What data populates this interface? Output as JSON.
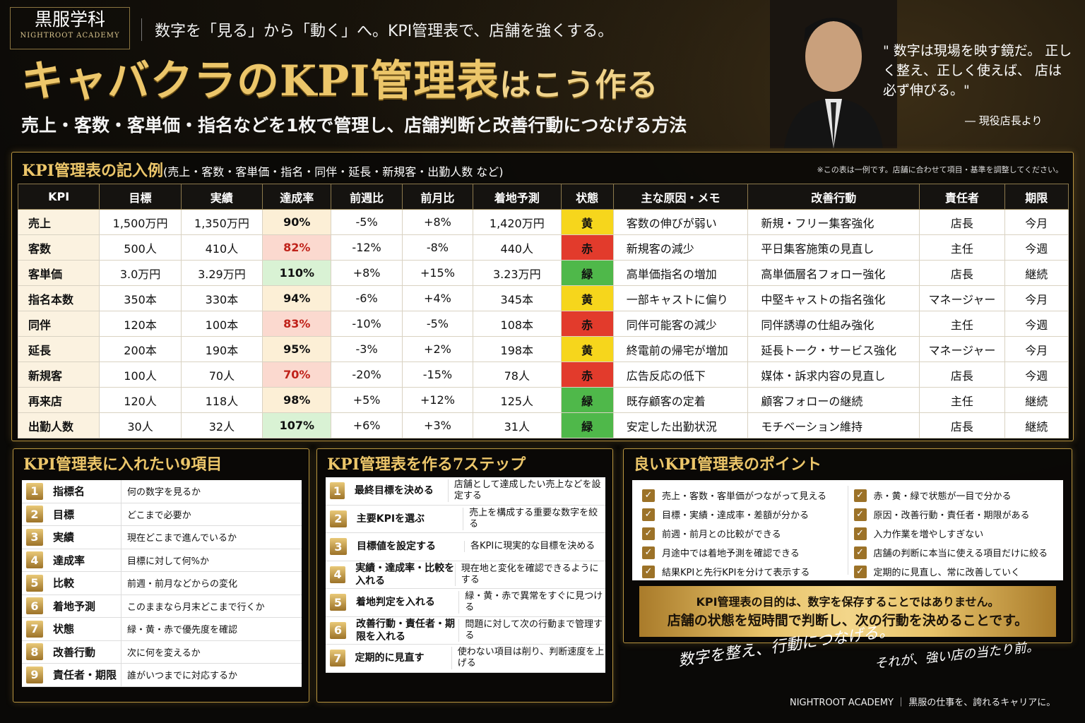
{
  "brand": {
    "name": "黒服学科",
    "name_en": "NIGHTROOT ACADEMY"
  },
  "tagline": "数字を「見る」から「動く」へ。KPI管理表で、店舗を強くする。",
  "title": {
    "main": "キャバクラのKPI管理表",
    "suffix": "はこう作る"
  },
  "subtitle": "売上・客数・客単価・指名などを1枚で管理し、店舗判断と改善行動につなげる方法",
  "quote": {
    "text": "\" 数字は現場を映す鏡だ。 正しく整え、正しく使えば、 店は必ず伸びる。\"",
    "source": "― 現役店長より"
  },
  "kpi_table": {
    "heading": "KPI管理表の記入例",
    "heading_sub": "(売上・客数・客単価・指名・同伴・延長・新規客・出勤人数 など)",
    "note": "※この表は一例です。店舗に合わせて項目・基準を調整してください。",
    "columns": [
      "KPI",
      "目標",
      "実績",
      "達成率",
      "前週比",
      "前月比",
      "着地予測",
      "状態",
      "主な原因・メモ",
      "改善行動",
      "責任者",
      "期限"
    ],
    "rows": [
      {
        "kpi": "売上",
        "target": "1,500万円",
        "actual": "1,350万円",
        "rate": "90%",
        "wow": "-5%",
        "mom": "+8%",
        "forecast": "1,420万円",
        "status": "黄",
        "memo": "客数の伸びが弱い",
        "action": "新規・フリー集客強化",
        "owner": "店長",
        "due": "今月"
      },
      {
        "kpi": "客数",
        "target": "500人",
        "actual": "410人",
        "rate": "82%",
        "wow": "-12%",
        "mom": "-8%",
        "forecast": "440人",
        "status": "赤",
        "memo": "新規客の減少",
        "action": "平日集客施策の見直し",
        "owner": "主任",
        "due": "今週"
      },
      {
        "kpi": "客単価",
        "target": "3.0万円",
        "actual": "3.29万円",
        "rate": "110%",
        "wow": "+8%",
        "mom": "+15%",
        "forecast": "3.23万円",
        "status": "緑",
        "memo": "高単価指名の増加",
        "action": "高単価層名フォロー強化",
        "owner": "店長",
        "due": "継続"
      },
      {
        "kpi": "指名本数",
        "target": "350本",
        "actual": "330本",
        "rate": "94%",
        "wow": "-6%",
        "mom": "+4%",
        "forecast": "345本",
        "status": "黄",
        "memo": "一部キャストに偏り",
        "action": "中堅キャストの指名強化",
        "owner": "マネージャー",
        "due": "今月"
      },
      {
        "kpi": "同伴",
        "target": "120本",
        "actual": "100本",
        "rate": "83%",
        "wow": "-10%",
        "mom": "-5%",
        "forecast": "108本",
        "status": "赤",
        "memo": "同伴可能客の減少",
        "action": "同伴誘導の仕組み強化",
        "owner": "主任",
        "due": "今週"
      },
      {
        "kpi": "延長",
        "target": "200本",
        "actual": "190本",
        "rate": "95%",
        "wow": "-3%",
        "mom": "+2%",
        "forecast": "198本",
        "status": "黄",
        "memo": "終電前の帰宅が増加",
        "action": "延長トーク・サービス強化",
        "owner": "マネージャー",
        "due": "今月"
      },
      {
        "kpi": "新規客",
        "target": "100人",
        "actual": "70人",
        "rate": "70%",
        "wow": "-20%",
        "mom": "-15%",
        "forecast": "78人",
        "status": "赤",
        "memo": "広告反応の低下",
        "action": "媒体・訴求内容の見直し",
        "owner": "店長",
        "due": "今週"
      },
      {
        "kpi": "再来店",
        "target": "120人",
        "actual": "118人",
        "rate": "98%",
        "wow": "+5%",
        "mom": "+12%",
        "forecast": "125人",
        "status": "緑",
        "memo": "既存顧客の定着",
        "action": "顧客フォローの継続",
        "owner": "主任",
        "due": "継続"
      },
      {
        "kpi": "出勤人数",
        "target": "30人",
        "actual": "32人",
        "rate": "107%",
        "wow": "+6%",
        "mom": "+3%",
        "forecast": "31人",
        "status": "緑",
        "memo": "安定した出勤状況",
        "action": "モチベーション維持",
        "owner": "店長",
        "due": "継続"
      }
    ],
    "status_colors": {
      "黄": "#f6d61c",
      "赤": "#e23b2c",
      "緑": "#4fb84a"
    }
  },
  "items9": {
    "heading": "KPI管理表に入れたい9項目",
    "items": [
      {
        "n": "1",
        "k": "指標名",
        "v": "何の数字を見るか"
      },
      {
        "n": "2",
        "k": "目標",
        "v": "どこまで必要か"
      },
      {
        "n": "3",
        "k": "実績",
        "v": "現在どこまで進んでいるか"
      },
      {
        "n": "4",
        "k": "達成率",
        "v": "目標に対して何%か"
      },
      {
        "n": "5",
        "k": "比較",
        "v": "前週・前月などからの変化"
      },
      {
        "n": "6",
        "k": "着地予測",
        "v": "このままなら月末どこまで行くか"
      },
      {
        "n": "7",
        "k": "状態",
        "v": "緑・黄・赤で優先度を確認"
      },
      {
        "n": "8",
        "k": "改善行動",
        "v": "次に何を変えるか"
      },
      {
        "n": "9",
        "k": "責任者・期限",
        "v": "誰がいつまでに対応するか"
      }
    ]
  },
  "steps7": {
    "heading": "KPI管理表を作る7ステップ",
    "items": [
      {
        "n": "1",
        "k": "最終目標を決める",
        "v": "店舗として達成したい売上などを設定する"
      },
      {
        "n": "2",
        "k": "主要KPIを選ぶ",
        "v": "売上を構成する重要な数字を絞る"
      },
      {
        "n": "3",
        "k": "目標値を設定する",
        "v": "各KPIに現実的な目標を決める"
      },
      {
        "n": "4",
        "k": "実績・達成率・比較を入れる",
        "v": "現在地と変化を確認できるようにする"
      },
      {
        "n": "5",
        "k": "着地判定を入れる",
        "v": "緑・黄・赤で異常をすぐに見つける"
      },
      {
        "n": "6",
        "k": "改善行動・責任者・期限を入れる",
        "v": "問題に対して次の行動まで管理する"
      },
      {
        "n": "7",
        "k": "定期的に見直す",
        "v": "使わない項目は削り、判断速度を上げる"
      }
    ]
  },
  "points": {
    "heading": "良いKPI管理表のポイント",
    "left": [
      "売上・客数・客単価がつながって見える",
      "目標・実績・達成率・差額が分かる",
      "前週・前月との比較ができる",
      "月途中では着地予測を確認できる",
      "結果KPIと先行KPIを分けて表示する"
    ],
    "right": [
      "赤・黄・緑で状態が一目で分かる",
      "原因・改善行動・責任者・期限がある",
      "入力作業を増やしすぎない",
      "店舗の判断に本当に使える項目だけに絞る",
      "定期的に見直し、常に改善していく"
    ],
    "banner1": "KPI管理表の目的は、数字を保存することではありません。",
    "banner2": "店舗の状態を短時間で判断し、次の行動を決めることです。"
  },
  "closing": {
    "line1": "数字を整え、行動につなげる。",
    "line2": "それが、強い店の当たり前。"
  },
  "footer": "NIGHTROOT ACADEMY ｜ 黒服の仕事を、誇れるキャリアに。"
}
